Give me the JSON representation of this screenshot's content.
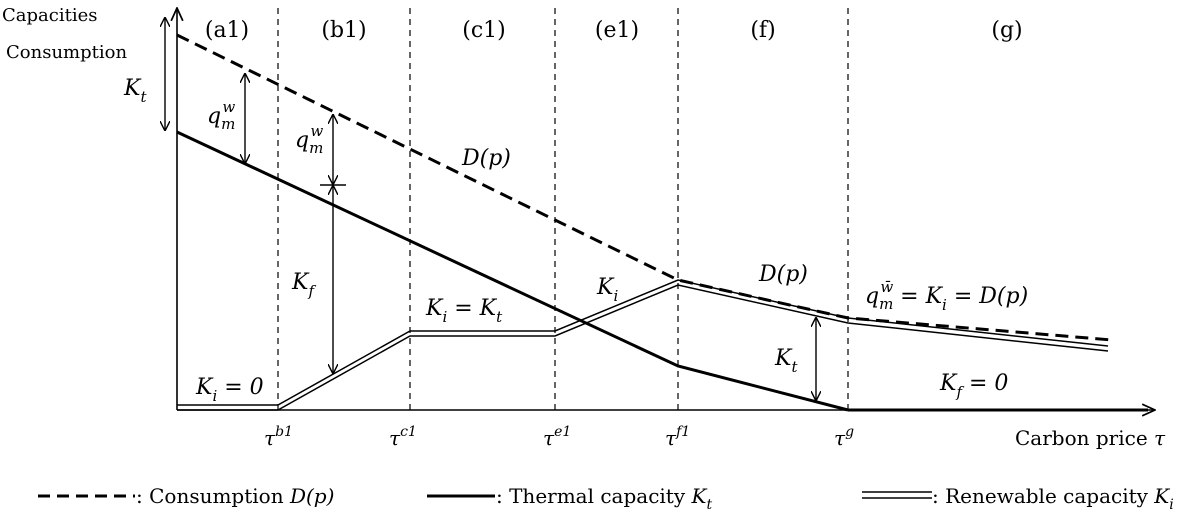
{
  "axes": {
    "y_label_line1": "Capacities",
    "y_label_line2": "Consumption",
    "x_label_prefix": "Carbon price ",
    "x_label_symbol": "τ"
  },
  "regions": [
    "(a1)",
    "(b1)",
    "(c1)",
    "(e1)",
    "(f)",
    "(g)"
  ],
  "thresholds": [
    {
      "base": "τ",
      "sup": "b1"
    },
    {
      "base": "τ",
      "sup": "c1"
    },
    {
      "base": "τ",
      "sup": "e1"
    },
    {
      "base": "τ",
      "sup": "f1"
    },
    {
      "base": "τ",
      "sup": "g"
    }
  ],
  "annotations": {
    "kt_left": {
      "base": "K",
      "sub": "t"
    },
    "qmw_a1": {
      "base": "q",
      "sub": "m",
      "sup": "w"
    },
    "qmw_b1": {
      "base": "q",
      "sub": "m",
      "sup": "w"
    },
    "kf": {
      "base": "K",
      "sub": "f"
    },
    "dp_upper": "D(p)",
    "ki_eq_kt": {
      "lhs": "K",
      "lhs_sub": "i",
      "eq": " = ",
      "rhs": "K",
      "rhs_sub": "t"
    },
    "ki_e1": {
      "base": "K",
      "sub": "i"
    },
    "dp_f": "D(p)",
    "qmwbar": {
      "base": "q",
      "sub": "m",
      "sup": "w̄",
      "rest_a": " = ",
      "ki": "K",
      "ki_sub": "i",
      "rest_b": " = D(p)"
    },
    "kt_f": {
      "base": "K",
      "sub": "t"
    },
    "ki_zero": {
      "base": "K",
      "sub": "i",
      "rest": " = 0"
    },
    "kf_zero": {
      "base": "K",
      "sub": "f",
      "rest": " = 0"
    }
  },
  "legend": {
    "consumption": {
      "text": ": Consumption ",
      "sym": "D(p)"
    },
    "thermal": {
      "text": ": Thermal capacity ",
      "sym": "K",
      "sub": "t"
    },
    "renewable": {
      "text": ": Renewable capacity ",
      "sym": "K",
      "sub": "i"
    }
  }
}
